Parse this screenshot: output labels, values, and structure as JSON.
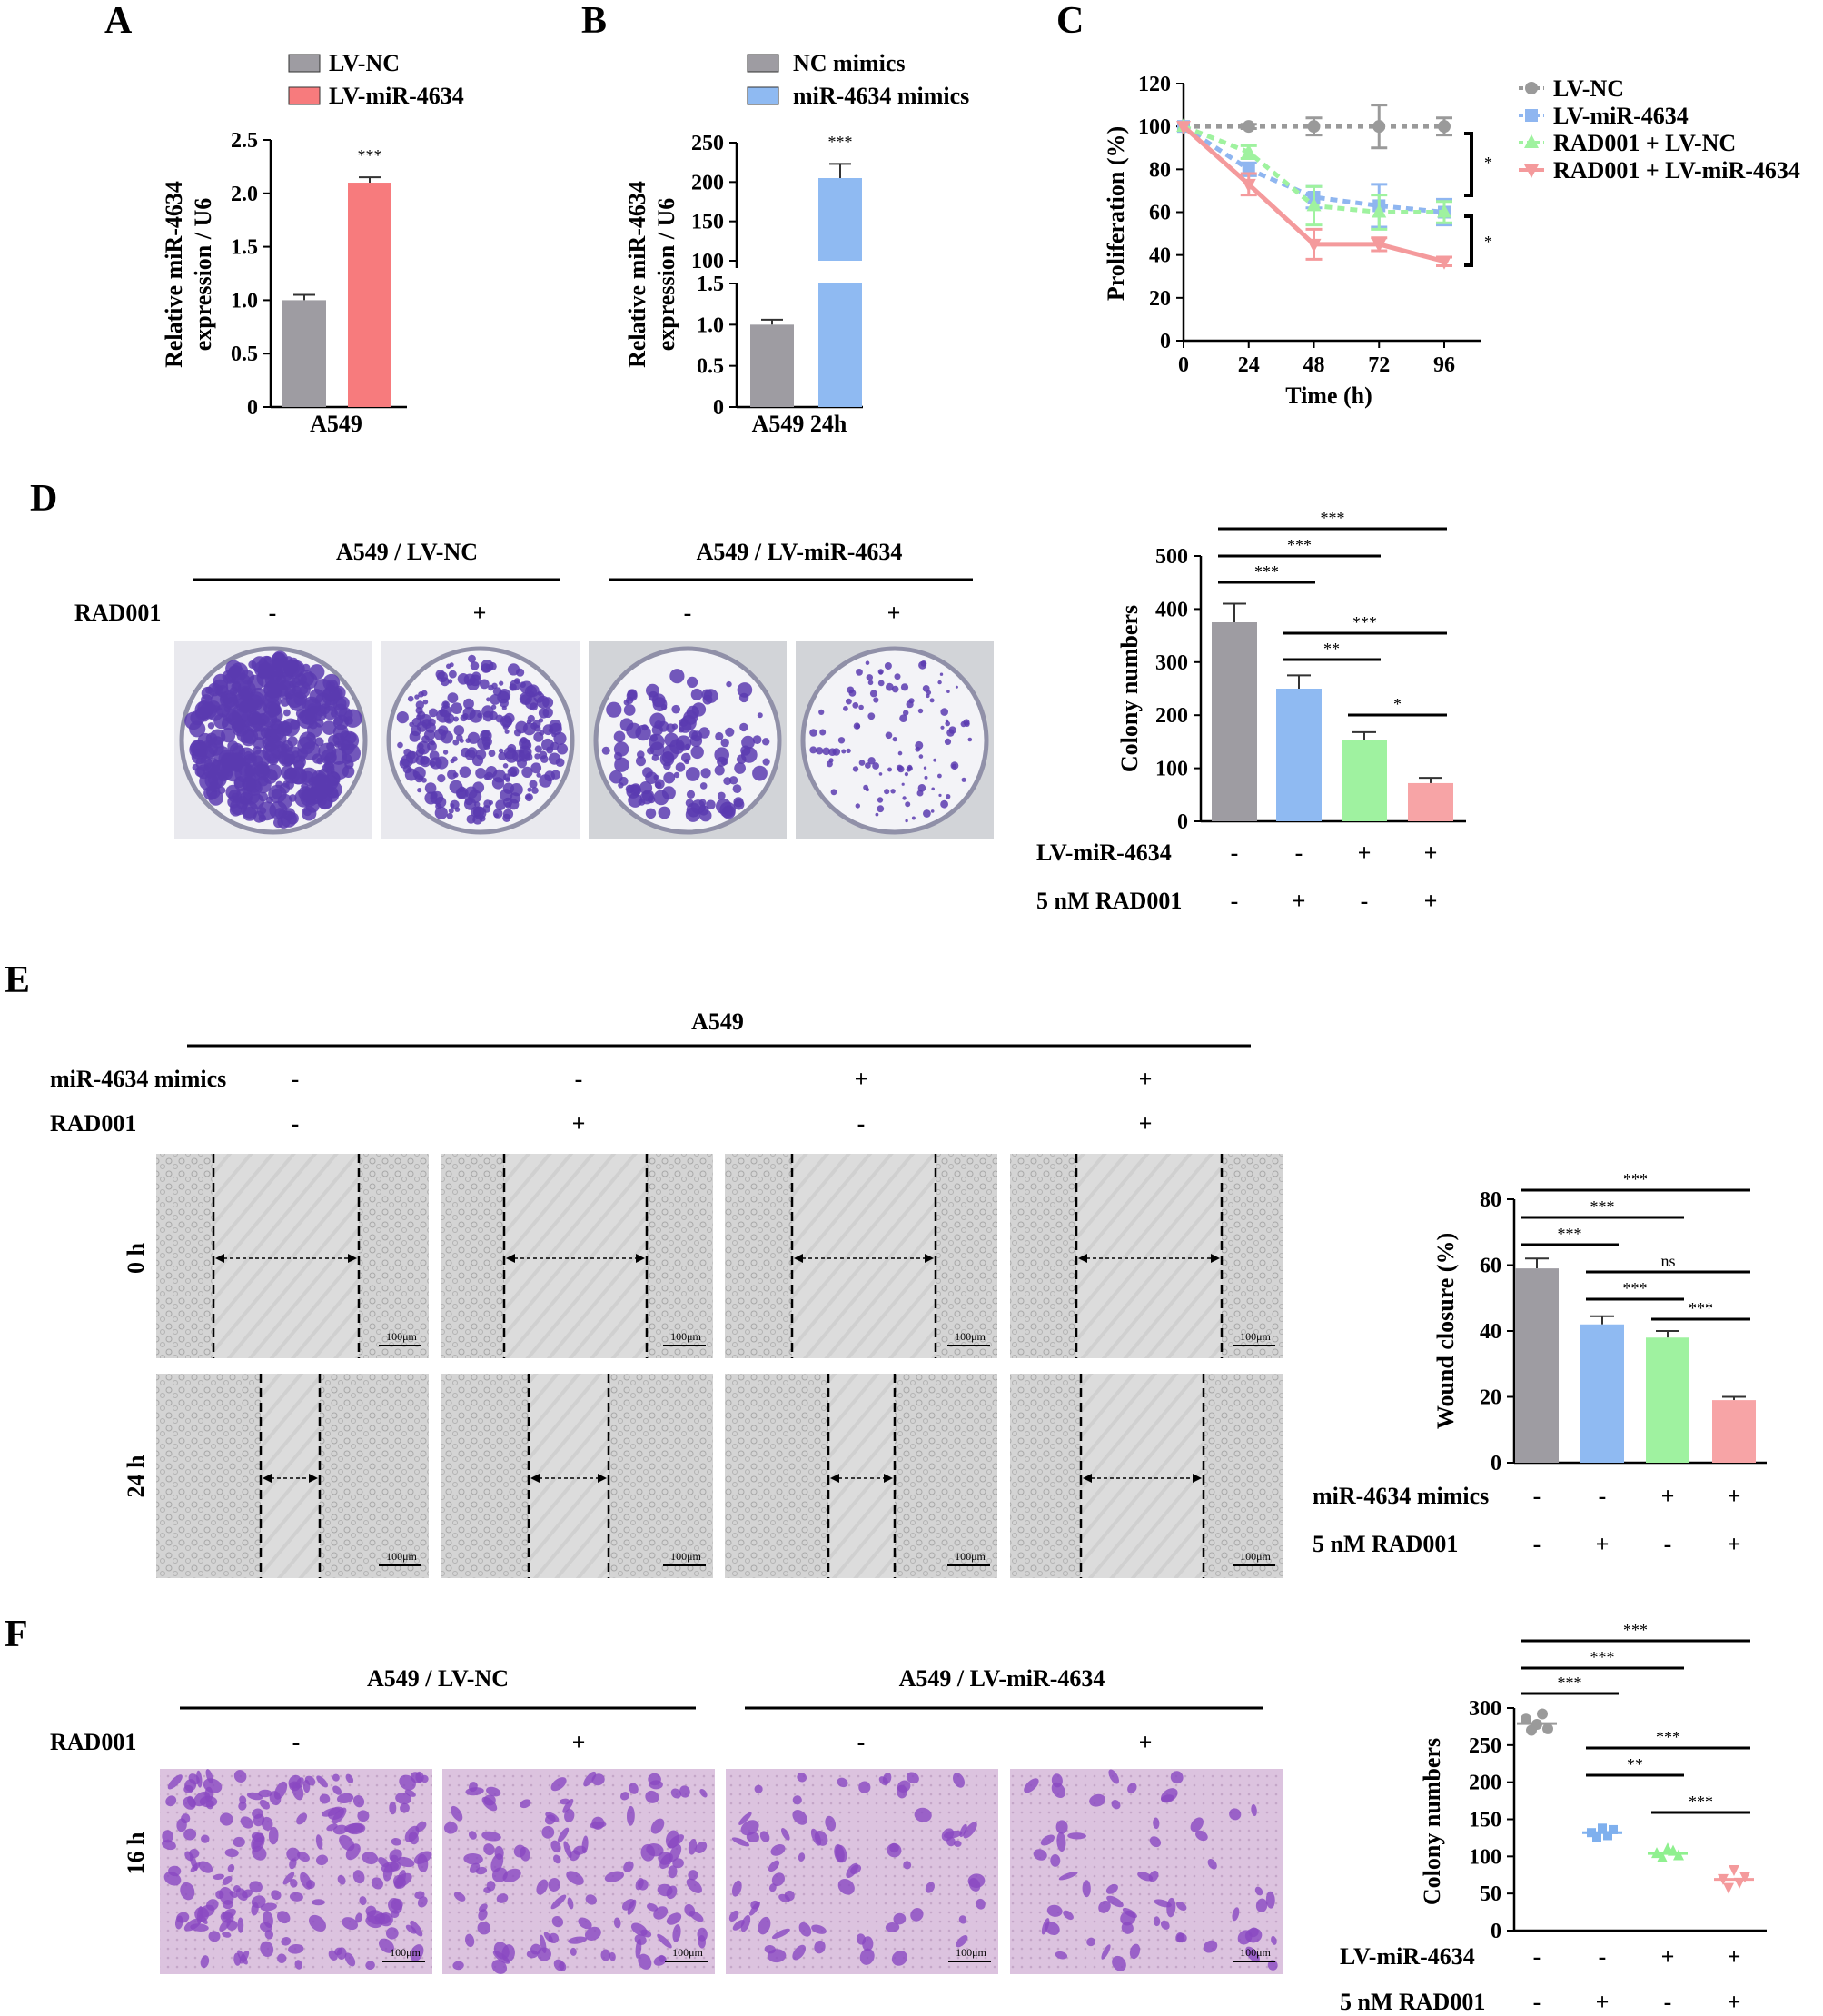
{
  "panels": {
    "A": "A",
    "B": "B",
    "C": "C",
    "D": "D",
    "E": "E",
    "F": "F"
  },
  "colors": {
    "gray": "#9e9ca2",
    "red": "#f77b7d",
    "blue": "#8fbaf2",
    "green": "#9ff2a0",
    "pink": "#f7a4a6",
    "dish": "#5a3bb0",
    "transwell": "#d9b8dc"
  },
  "chart_data": [
    {
      "panel": "A",
      "type": "bar",
      "ylabel": "Relative miR-4634 expression / U6",
      "xlabel": "A549",
      "legend": [
        "LV-NC",
        "LV-miR-4634"
      ],
      "series": [
        {
          "name": "LV-NC",
          "values": [
            1.0
          ],
          "error": [
            0.05
          ]
        },
        {
          "name": "LV-miR-4634",
          "values": [
            2.1
          ],
          "error": [
            0.05
          ]
        }
      ],
      "yticks": [
        "0",
        "0.5",
        "1.0",
        "1.5",
        "2.0",
        "2.5"
      ],
      "ylim": [
        0,
        2.5
      ],
      "annotations": [
        "***"
      ]
    },
    {
      "panel": "B",
      "type": "bar",
      "ylabel": "Relative miR-4634 expression / U6",
      "xlabel": "A549 24h",
      "legend": [
        "NC mimics",
        "miR-4634 mimics"
      ],
      "series": [
        {
          "name": "NC mimics",
          "values": [
            1.0
          ],
          "error": [
            0.06
          ]
        },
        {
          "name": "miR-4634 mimics",
          "values": [
            205
          ],
          "error": [
            18
          ]
        }
      ],
      "yticks_lower": [
        "0",
        "0.5",
        "1.0",
        "1.5"
      ],
      "yticks_upper": [
        "100",
        "150",
        "200",
        "250"
      ],
      "axis_break": [
        1.5,
        100
      ],
      "annotations": [
        "***"
      ]
    },
    {
      "panel": "C",
      "type": "line",
      "ylabel": "Proliferation (%)",
      "xlabel": "Time (h)",
      "x": [
        0,
        24,
        48,
        72,
        96
      ],
      "xticks": [
        "0",
        "24",
        "48",
        "72",
        "96"
      ],
      "yticks": [
        "0",
        "20",
        "40",
        "60",
        "80",
        "100",
        "120"
      ],
      "ylim": [
        0,
        120
      ],
      "series": [
        {
          "name": "LV-NC",
          "values": [
            100,
            100,
            100,
            100,
            100
          ],
          "error": [
            0,
            1,
            4,
            10,
            4
          ]
        },
        {
          "name": "LV-miR-4634",
          "values": [
            100,
            80,
            67,
            63,
            60
          ],
          "error": [
            0,
            3,
            5,
            10,
            6
          ]
        },
        {
          "name": "RAD001 + LV-NC",
          "values": [
            100,
            88,
            63,
            60,
            60
          ],
          "error": [
            0,
            3,
            9,
            8,
            5
          ]
        },
        {
          "name": "RAD001 + LV-miR-4634",
          "values": [
            100,
            73,
            45,
            45,
            37
          ],
          "error": [
            0,
            5,
            7,
            3,
            2
          ]
        }
      ],
      "annotations": [
        "*",
        "*"
      ]
    },
    {
      "panel": "D",
      "type": "bar",
      "ylabel": "Colony numbers",
      "yticks": [
        "0",
        "100",
        "200",
        "300",
        "400",
        "500"
      ],
      "ylim": [
        0,
        500
      ],
      "values": [
        375,
        250,
        153,
        72
      ],
      "errors": [
        35,
        25,
        15,
        10
      ],
      "row_labels": [
        "LV-miR-4634",
        "5 nM RAD001"
      ],
      "row_values": [
        [
          "-",
          "-",
          "+",
          "+"
        ],
        [
          "-",
          "+",
          "-",
          "+"
        ]
      ],
      "sig": [
        "***",
        "***",
        "***",
        "***",
        "**",
        "*"
      ]
    },
    {
      "panel": "E",
      "type": "bar",
      "ylabel": "Wound closure (%)",
      "yticks": [
        "0",
        "20",
        "40",
        "60",
        "80"
      ],
      "ylim": [
        0,
        80
      ],
      "values": [
        59,
        42,
        38,
        19
      ],
      "errors": [
        3,
        2.5,
        2,
        1
      ],
      "row_labels": [
        "miR-4634 mimics",
        "5 nM RAD001"
      ],
      "row_values": [
        [
          "-",
          "-",
          "+",
          "+"
        ],
        [
          "-",
          "+",
          "-",
          "+"
        ]
      ],
      "sig": [
        "***",
        "***",
        "***",
        "ns",
        "***",
        "***"
      ]
    },
    {
      "panel": "F",
      "type": "scatter",
      "ylabel": "Colony numbers",
      "yticks": [
        "0",
        "50",
        "100",
        "150",
        "200",
        "250",
        "300"
      ],
      "ylim": [
        0,
        300
      ],
      "values": [
        [
          285,
          270,
          278,
          292,
          272
        ],
        [
          132,
          125,
          138,
          128,
          136
        ],
        [
          104,
          98,
          110,
          107,
          101
        ],
        [
          70,
          58,
          82,
          65,
          73
        ]
      ],
      "means": [
        279,
        132,
        104,
        69
      ],
      "row_labels": [
        "LV-miR-4634",
        "5 nM RAD001"
      ],
      "row_values": [
        [
          "-",
          "-",
          "+",
          "+"
        ],
        [
          "-",
          "+",
          "-",
          "+"
        ]
      ],
      "sig": [
        "***",
        "***",
        "***",
        "***",
        "**",
        "***"
      ]
    }
  ],
  "D_images": {
    "group1": "A549 / LV-NC",
    "group2": "A549 / LV-miR-4634",
    "row": "RAD001",
    "signs": [
      "-",
      "+",
      "-",
      "+"
    ]
  },
  "E_images": {
    "group": "A549",
    "row1": "miR-4634 mimics",
    "row2": "RAD001",
    "row1_signs": [
      "-",
      "-",
      "+",
      "+"
    ],
    "row2_signs": [
      "-",
      "+",
      "-",
      "+"
    ],
    "times": [
      "0 h",
      "24 h"
    ],
    "scale": "100μm"
  },
  "F_images": {
    "group1": "A549 / LV-NC",
    "group2": "A549 / LV-miR-4634",
    "row": "RAD001",
    "signs": [
      "-",
      "+",
      "-",
      "+"
    ],
    "time": "16 h",
    "scale": "100μm"
  }
}
